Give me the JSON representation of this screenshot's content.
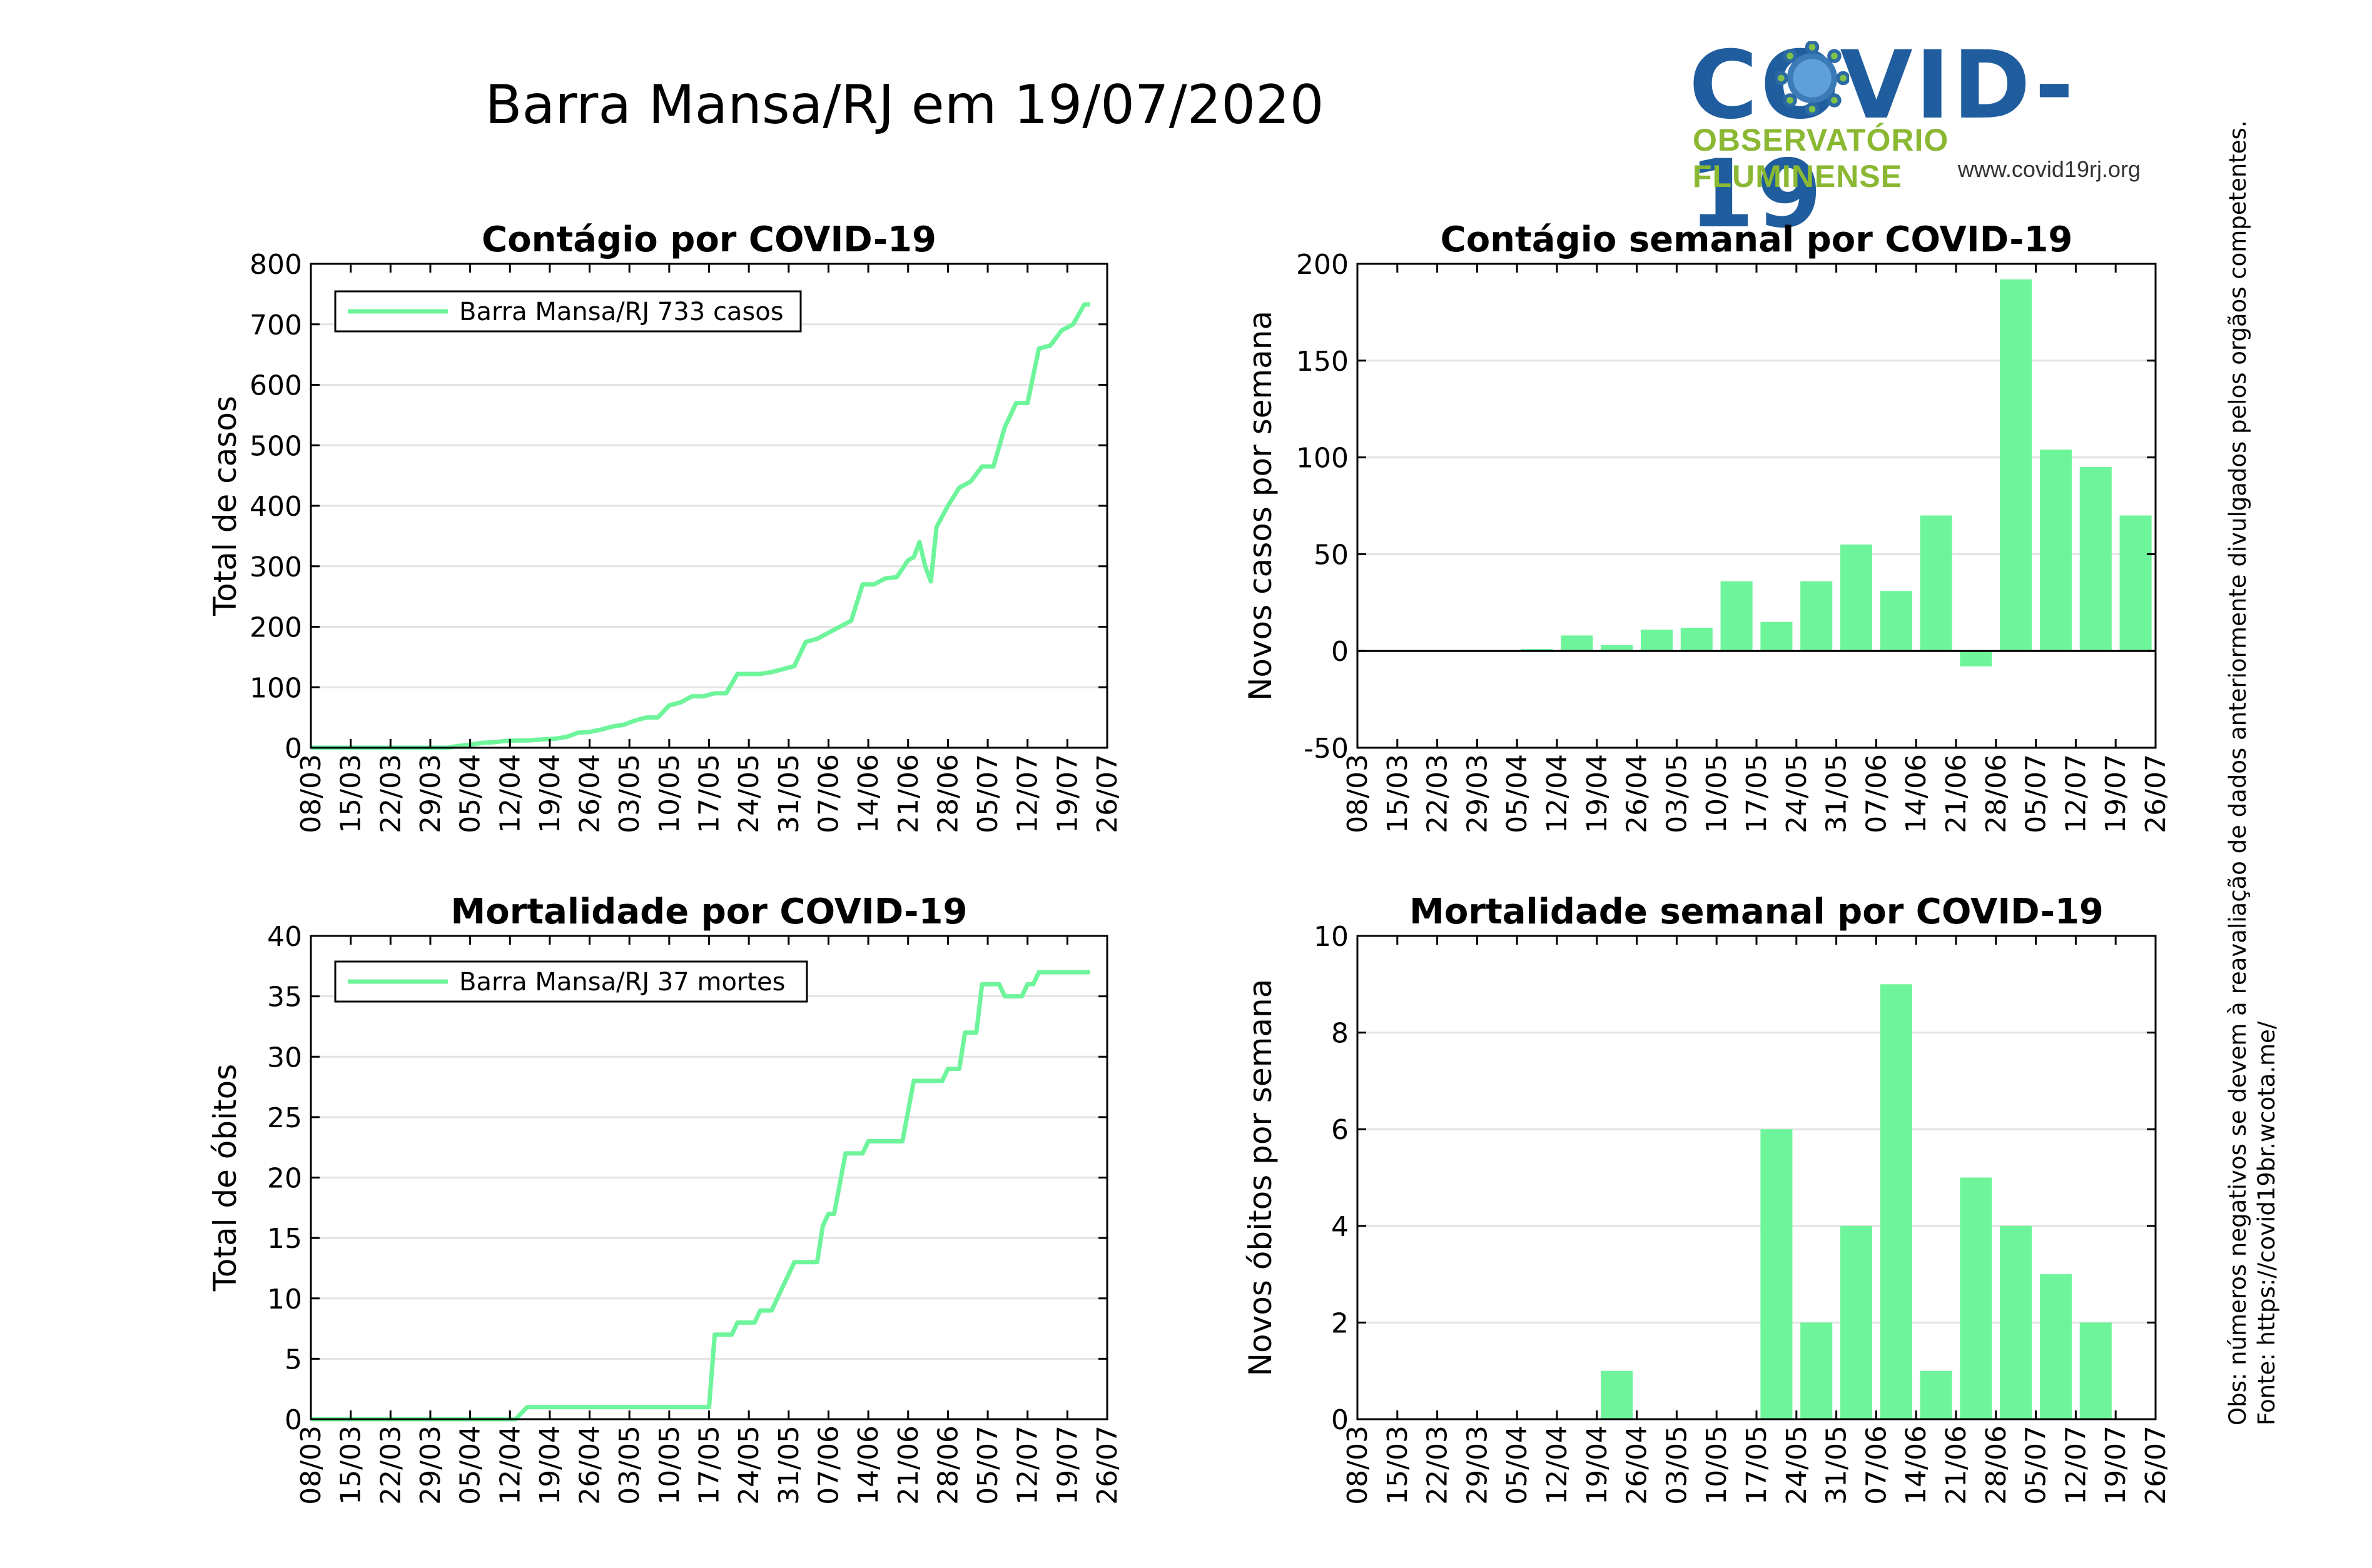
{
  "page": {
    "title": "Barra Mansa/RJ em 19/07/2020",
    "logo_title": "COVID-19",
    "logo_subtitle": "OBSERVATÓRIO FLUMINENSE",
    "logo_url": "www.covid19rj.org",
    "source": "Fonte: https://covid19br.wcota.me/",
    "note": "Obs: números negativos se devem à reavaliação de dados anteriormente divulgados pelos orgãos competentes.",
    "colors": {
      "series": "#6ef59b",
      "logo_blue": "#1f5d9e",
      "logo_green": "#8ab832"
    }
  },
  "chart_data": [
    {
      "type": "line",
      "title": "Contágio por COVID-19",
      "xlabel": "",
      "ylabel": "Total de casos",
      "xlim": [
        "08/03",
        "26/07"
      ],
      "ylim": [
        0,
        800
      ],
      "yticks": [
        0,
        100,
        200,
        300,
        400,
        500,
        600,
        700,
        800
      ],
      "xticks": [
        "08/03",
        "15/03",
        "22/03",
        "29/03",
        "05/04",
        "12/04",
        "19/04",
        "26/04",
        "03/05",
        "10/05",
        "17/05",
        "24/05",
        "31/05",
        "07/06",
        "14/06",
        "21/06",
        "28/06",
        "05/07",
        "12/07",
        "19/07",
        "26/07"
      ],
      "legend": "top-left",
      "grid": true,
      "series": [
        {
          "name": "Barra Mansa/RJ  733 casos",
          "points": [
            [
              "08/03",
              0
            ],
            [
              "01/04",
              0
            ],
            [
              "03/04",
              3
            ],
            [
              "05/04",
              5
            ],
            [
              "07/04",
              8
            ],
            [
              "09/04",
              9
            ],
            [
              "11/04",
              11
            ],
            [
              "13/04",
              12
            ],
            [
              "15/04",
              12
            ],
            [
              "18/04",
              14
            ],
            [
              "20/04",
              15
            ],
            [
              "22/04",
              18
            ],
            [
              "24/04",
              25
            ],
            [
              "26/04",
              26
            ],
            [
              "28/04",
              30
            ],
            [
              "30/04",
              35
            ],
            [
              "02/05",
              38
            ],
            [
              "04/05",
              45
            ],
            [
              "06/05",
              50
            ],
            [
              "08/05",
              50
            ],
            [
              "10/05",
              70
            ],
            [
              "12/05",
              75
            ],
            [
              "14/05",
              85
            ],
            [
              "16/05",
              85
            ],
            [
              "18/05",
              90
            ],
            [
              "20/05",
              90
            ],
            [
              "22/05",
              122
            ],
            [
              "24/05",
              122
            ],
            [
              "26/05",
              122
            ],
            [
              "28/05",
              125
            ],
            [
              "30/05",
              130
            ],
            [
              "01/06",
              135
            ],
            [
              "03/06",
              175
            ],
            [
              "05/06",
              180
            ],
            [
              "07/06",
              190
            ],
            [
              "09/06",
              200
            ],
            [
              "11/06",
              210
            ],
            [
              "13/06",
              270
            ],
            [
              "15/06",
              270
            ],
            [
              "17/06",
              280
            ],
            [
              "19/06",
              282
            ],
            [
              "21/06",
              310
            ],
            [
              "22/06",
              315
            ],
            [
              "23/06",
              340
            ],
            [
              "24/06",
              300
            ],
            [
              "25/06",
              275
            ],
            [
              "26/06",
              365
            ],
            [
              "28/06",
              400
            ],
            [
              "30/06",
              430
            ],
            [
              "02/07",
              440
            ],
            [
              "04/07",
              465
            ],
            [
              "06/07",
              465
            ],
            [
              "08/07",
              530
            ],
            [
              "10/07",
              570
            ],
            [
              "12/07",
              570
            ],
            [
              "14/07",
              660
            ],
            [
              "16/07",
              665
            ],
            [
              "18/07",
              690
            ],
            [
              "20/07",
              700
            ],
            [
              "22/07",
              733
            ],
            [
              "23/07",
              733
            ]
          ]
        }
      ]
    },
    {
      "type": "bar",
      "title": "Contágio semanal por COVID-19",
      "xlabel": "",
      "ylabel": "Novos casos por semana",
      "ylim": [
        -50,
        200
      ],
      "yticks": [
        -50,
        0,
        50,
        100,
        150,
        200
      ],
      "xticks": [
        "08/03",
        "15/03",
        "22/03",
        "29/03",
        "05/04",
        "12/04",
        "19/04",
        "26/04",
        "03/05",
        "10/05",
        "17/05",
        "24/05",
        "31/05",
        "07/06",
        "14/06",
        "21/06",
        "28/06",
        "05/07",
        "12/07",
        "19/07",
        "26/07"
      ],
      "grid": true,
      "categories": [
        "08/03",
        "15/03",
        "22/03",
        "29/03",
        "05/04",
        "12/04",
        "19/04",
        "26/04",
        "03/05",
        "10/05",
        "17/05",
        "24/05",
        "31/05",
        "07/06",
        "14/06",
        "21/06",
        "28/06",
        "05/07",
        "12/07",
        "19/07"
      ],
      "values": [
        0,
        0,
        0,
        0,
        1,
        8,
        3,
        11,
        12,
        36,
        15,
        36,
        55,
        31,
        70,
        -8,
        192,
        104,
        95,
        70
      ]
    },
    {
      "type": "line",
      "title": "Mortalidade por COVID-19",
      "xlabel": "",
      "ylabel": "Total de óbitos",
      "xlim": [
        "08/03",
        "26/07"
      ],
      "ylim": [
        0,
        40
      ],
      "yticks": [
        0,
        5,
        10,
        15,
        20,
        25,
        30,
        35,
        40
      ],
      "xticks": [
        "08/03",
        "15/03",
        "22/03",
        "29/03",
        "05/04",
        "12/04",
        "19/04",
        "26/04",
        "03/05",
        "10/05",
        "17/05",
        "24/05",
        "31/05",
        "07/06",
        "14/06",
        "21/06",
        "28/06",
        "05/07",
        "12/07",
        "19/07",
        "26/07"
      ],
      "legend": "top-left",
      "grid": true,
      "series": [
        {
          "name": "Barra Mansa/RJ  37 mortes",
          "points": [
            [
              "08/03",
              0
            ],
            [
              "13/04",
              0
            ],
            [
              "15/04",
              1
            ],
            [
              "17/05",
              1
            ],
            [
              "18/05",
              7
            ],
            [
              "21/05",
              7
            ],
            [
              "22/05",
              8
            ],
            [
              "25/05",
              8
            ],
            [
              "26/05",
              9
            ],
            [
              "28/05",
              9
            ],
            [
              "30/05",
              11
            ],
            [
              "01/06",
              13
            ],
            [
              "05/06",
              13
            ],
            [
              "06/06",
              16
            ],
            [
              "07/06",
              17
            ],
            [
              "08/06",
              17
            ],
            [
              "10/06",
              22
            ],
            [
              "13/06",
              22
            ],
            [
              "14/06",
              23
            ],
            [
              "20/06",
              23
            ],
            [
              "22/06",
              28
            ],
            [
              "27/06",
              28
            ],
            [
              "28/06",
              29
            ],
            [
              "30/06",
              29
            ],
            [
              "01/07",
              32
            ],
            [
              "03/07",
              32
            ],
            [
              "04/07",
              36
            ],
            [
              "07/07",
              36
            ],
            [
              "08/07",
              35
            ],
            [
              "11/07",
              35
            ],
            [
              "12/07",
              36
            ],
            [
              "13/07",
              36
            ],
            [
              "14/07",
              37
            ],
            [
              "23/07",
              37
            ]
          ]
        }
      ]
    },
    {
      "type": "bar",
      "title": "Mortalidade semanal por COVID-19",
      "xlabel": "",
      "ylabel": "Novos óbitos por semana",
      "ylim": [
        0,
        10
      ],
      "yticks": [
        0,
        2,
        4,
        6,
        8,
        10
      ],
      "xticks": [
        "08/03",
        "15/03",
        "22/03",
        "29/03",
        "05/04",
        "12/04",
        "19/04",
        "26/04",
        "03/05",
        "10/05",
        "17/05",
        "24/05",
        "31/05",
        "07/06",
        "14/06",
        "21/06",
        "28/06",
        "05/07",
        "12/07",
        "19/07",
        "26/07"
      ],
      "grid": true,
      "categories": [
        "08/03",
        "15/03",
        "22/03",
        "29/03",
        "05/04",
        "12/04",
        "19/04",
        "26/04",
        "03/05",
        "10/05",
        "17/05",
        "24/05",
        "31/05",
        "07/06",
        "14/06",
        "21/06",
        "28/06",
        "05/07",
        "12/07",
        "19/07"
      ],
      "values": [
        0,
        0,
        0,
        0,
        0,
        0,
        1,
        0,
        0,
        0,
        6,
        2,
        4,
        9,
        1,
        5,
        4,
        3,
        2,
        0
      ]
    }
  ]
}
